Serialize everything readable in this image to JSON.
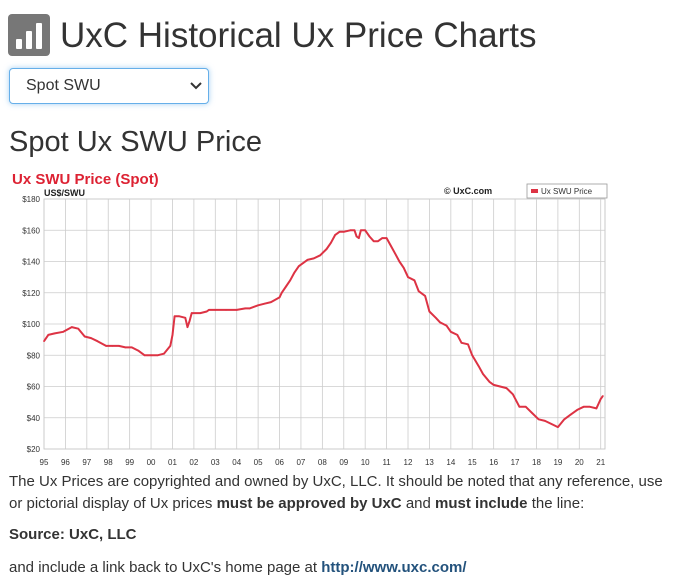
{
  "header": {
    "title": "UxC Historical Ux Price Charts",
    "icon": "bar-chart-icon"
  },
  "selector": {
    "selected": "Spot SWU"
  },
  "section_title": "Spot Ux SWU Price",
  "chart_data": {
    "type": "line",
    "title": "Ux SWU Price (Spot)",
    "ylabel": "US$/SWU",
    "copyright": "© UxC.com",
    "legend": "top-right",
    "grid": true,
    "ylim": [
      20,
      180
    ],
    "xlim": [
      1995,
      2021.2
    ],
    "yticks": [
      "$20",
      "$40",
      "$60",
      "$80",
      "$100",
      "$120",
      "$140",
      "$160",
      "$180"
    ],
    "xticks": [
      "95",
      "96",
      "97",
      "98",
      "99",
      "00",
      "01",
      "02",
      "03",
      "04",
      "05",
      "06",
      "07",
      "08",
      "09",
      "10",
      "11",
      "12",
      "13",
      "14",
      "15",
      "16",
      "17",
      "18",
      "19",
      "20",
      "21"
    ],
    "series": [
      {
        "name": "Ux SWU Price",
        "color": "#dd3344",
        "x": [
          1995.0,
          1995.2,
          1995.5,
          1995.9,
          1996.3,
          1996.6,
          1996.9,
          1997.2,
          1997.5,
          1997.9,
          1998.2,
          1998.5,
          1998.8,
          1999.1,
          1999.4,
          1999.7,
          1999.85,
          2000.0,
          2000.3,
          2000.6,
          2000.9,
          2001.0,
          2001.1,
          2001.2,
          2001.3,
          2001.6,
          2001.7,
          2001.8,
          2001.9,
          2002.3,
          2002.6,
          2002.7,
          2003.0,
          2003.5,
          2004.0,
          2004.4,
          2004.6,
          2005.0,
          2005.3,
          2005.6,
          2006.0,
          2006.1,
          2006.3,
          2006.5,
          2006.7,
          2006.9,
          2007.1,
          2007.3,
          2007.6,
          2007.9,
          2008.2,
          2008.4,
          2008.6,
          2008.8,
          2009.0,
          2009.3,
          2009.5,
          2009.6,
          2009.7,
          2009.8,
          2010.0,
          2010.2,
          2010.4,
          2010.6,
          2010.8,
          2011.0,
          2011.2,
          2011.4,
          2011.6,
          2011.8,
          2012.0,
          2012.3,
          2012.5,
          2012.8,
          2013.0,
          2013.3,
          2013.5,
          2013.8,
          2014.0,
          2014.3,
          2014.5,
          2014.8,
          2015.0,
          2015.3,
          2015.5,
          2015.8,
          2016.0,
          2016.3,
          2016.6,
          2016.9,
          2017.2,
          2017.5,
          2017.8,
          2018.1,
          2018.4,
          2018.7,
          2019.0,
          2019.3,
          2019.6,
          2019.9,
          2020.2,
          2020.5,
          2020.8,
          2021.0,
          2021.1
        ],
        "y": [
          89,
          93,
          94,
          95,
          98,
          97,
          92,
          91,
          89,
          86,
          86,
          86,
          85,
          85,
          83,
          80,
          80,
          80,
          80,
          81,
          86,
          93,
          105,
          105,
          105,
          104,
          98,
          102,
          107,
          107,
          108,
          109,
          109,
          109,
          109,
          110,
          110,
          112,
          113,
          114,
          117,
          120,
          124,
          128,
          133,
          137,
          139,
          141,
          142,
          144,
          148,
          152,
          157,
          159,
          159,
          160,
          160,
          156,
          155,
          160,
          160,
          156,
          153,
          153,
          155,
          155,
          150,
          145,
          140,
          136,
          130,
          128,
          121,
          118,
          108,
          104,
          101,
          99,
          95,
          93,
          88,
          87,
          80,
          73,
          68,
          63,
          61,
          60,
          59,
          55,
          47,
          47,
          43,
          39,
          38,
          36,
          34,
          39,
          42,
          45,
          47,
          47,
          46,
          52,
          54
        ]
      }
    ]
  },
  "notice": {
    "line_a": "The Ux Prices are copyrighted and owned by UxC, LLC. It should be noted that any reference, use or pictorial display of Ux prices",
    "bold_a": "must be approved by UxC",
    "mid": "and",
    "bold_b": "must include",
    "end": "the line:",
    "source": "Source: UxC, LLC",
    "link_pre": "and include a link back to UxC's home page at",
    "link": "http://www.uxc.com/"
  }
}
